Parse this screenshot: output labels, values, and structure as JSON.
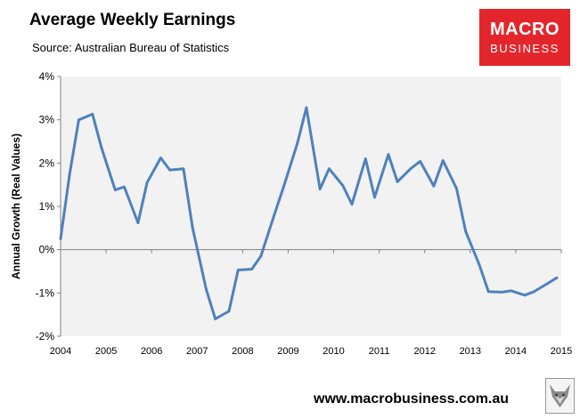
{
  "header": {
    "title": "Average Weekly Earnings",
    "subtitle": "Source: Australian Bureau of Statistics"
  },
  "logo": {
    "line1": "MACRO",
    "line2": "BUSINESS"
  },
  "footer": {
    "url": "www.macrobusiness.com.au",
    "mascot_icon": "fox-icon"
  },
  "colors": {
    "line": "#4f81bd",
    "plot_bg": "#f2f2f2",
    "logo_bg": "#e3262b"
  },
  "chart_data": {
    "type": "line",
    "title": "Average Weekly Earnings",
    "subtitle": "Source: Australian Bureau of Statistics",
    "xlabel": "",
    "ylabel": "Annual Growth (Real Values)",
    "xlim": [
      2004,
      2015
    ],
    "ylim": [
      -2,
      4
    ],
    "grid": false,
    "legend": "none",
    "x_ticks": [
      "2004",
      "2005",
      "2006",
      "2007",
      "2008",
      "2009",
      "2010",
      "2011",
      "2012",
      "2013",
      "2014",
      "2015"
    ],
    "y_ticks": [
      {
        "value": -2,
        "label": "-2%"
      },
      {
        "value": -1,
        "label": "-1%"
      },
      {
        "value": 0,
        "label": "0%"
      },
      {
        "value": 1,
        "label": "1%"
      },
      {
        "value": 2,
        "label": "2%"
      },
      {
        "value": 3,
        "label": "3%"
      },
      {
        "value": 4,
        "label": "4%"
      }
    ],
    "series": [
      {
        "x": [
          2004.0,
          2004.2,
          2004.4,
          2004.7,
          2004.9,
          2005.2,
          2005.4,
          2005.7,
          2005.9,
          2006.2,
          2006.4,
          2006.7,
          2006.9,
          2007.2,
          2007.4,
          2007.7,
          2007.9,
          2008.2,
          2008.4,
          2008.7,
          2008.9,
          2009.2,
          2009.4,
          2009.7,
          2009.9,
          2010.2,
          2010.4,
          2010.7,
          2010.9,
          2011.2,
          2011.4,
          2011.7,
          2011.9,
          2012.2,
          2012.4,
          2012.7,
          2012.9,
          2013.2,
          2013.4,
          2013.7,
          2013.9,
          2014.2,
          2014.4,
          2014.7,
          2014.9
        ],
        "y": [
          0.25,
          1.75,
          3.0,
          3.13,
          2.35,
          1.38,
          1.45,
          0.62,
          1.55,
          2.12,
          1.84,
          1.87,
          0.5,
          -0.92,
          -1.6,
          -1.42,
          -0.47,
          -0.45,
          -0.15,
          0.82,
          1.45,
          2.45,
          3.28,
          1.4,
          1.87,
          1.48,
          1.05,
          2.1,
          1.21,
          2.2,
          1.57,
          1.88,
          2.04,
          1.47,
          2.06,
          1.41,
          0.42,
          -0.35,
          -0.97,
          -0.98,
          -0.95,
          -1.05,
          -0.97,
          -0.78,
          -0.65
        ]
      }
    ]
  }
}
